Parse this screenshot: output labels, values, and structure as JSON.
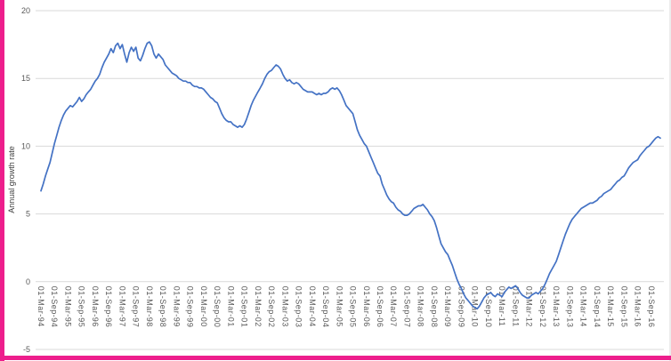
{
  "theme": {
    "accent": "#ED1E8C",
    "line_color": "#4472C4",
    "grid_color": "#D9D9D9",
    "axis_text_color": "#595959",
    "axis_title_color": "#404040",
    "background": "#FFFFFF"
  },
  "chart_data": {
    "type": "line",
    "title": "",
    "xlabel": "",
    "ylabel": "Annual growth rate",
    "ylim": [
      -5,
      20
    ],
    "yticks": [
      20,
      15,
      10,
      5,
      0,
      -5
    ],
    "grid": true,
    "legend": false,
    "x_tick_labels": [
      "01-Mar-94",
      "01-Sep-94",
      "01-Mar-95",
      "01-Sep-95",
      "01-Mar-96",
      "01-Sep-96",
      "01-Mar-97",
      "01-Sep-97",
      "01-Mar-98",
      "01-Sep-98",
      "01-Mar-99",
      "01-Sep-99",
      "01-Mar-00",
      "01-Sep-00",
      "01-Mar-01",
      "01-Sep-01",
      "01-Mar-02",
      "01-Sep-02",
      "01-Mar-03",
      "01-Sep-03",
      "01-Mar-04",
      "01-Sep-04",
      "01-Mar-05",
      "01-Sep-05",
      "01-Mar-06",
      "01-Sep-06",
      "01-Mar-07",
      "01-Sep-07",
      "01-Mar-08",
      "01-Sep-08",
      "01-Mar-09",
      "01-Sep-09",
      "01-Mar-10",
      "01-Sep-10",
      "01-Mar-11",
      "01-Sep-11",
      "01-Mar-12",
      "01-Sep-12",
      "01-Mar-13",
      "01-Sep-13",
      "01-Mar-14",
      "01-Sep-14",
      "01-Mar-15",
      "01-Sep-15",
      "01-Mar-16",
      "01-Sep-16"
    ],
    "months_per_tick": 6,
    "series": [
      {
        "name": "Annual growth rate",
        "start": "1994-03",
        "frequency": "monthly",
        "values": [
          6.7,
          7.2,
          7.8,
          8.3,
          8.8,
          9.5,
          10.2,
          10.8,
          11.4,
          11.9,
          12.3,
          12.6,
          12.8,
          13.0,
          12.9,
          13.1,
          13.3,
          13.6,
          13.3,
          13.5,
          13.8,
          14.0,
          14.2,
          14.5,
          14.8,
          15.0,
          15.3,
          15.8,
          16.2,
          16.5,
          16.8,
          17.2,
          16.9,
          17.4,
          17.6,
          17.2,
          17.5,
          16.8,
          16.2,
          16.9,
          17.3,
          17.0,
          17.3,
          16.5,
          16.3,
          16.7,
          17.2,
          17.6,
          17.7,
          17.4,
          16.8,
          16.5,
          16.8,
          16.6,
          16.4,
          16.0,
          15.8,
          15.6,
          15.4,
          15.3,
          15.2,
          15.0,
          14.9,
          14.8,
          14.8,
          14.7,
          14.7,
          14.5,
          14.4,
          14.4,
          14.3,
          14.3,
          14.2,
          14.0,
          13.8,
          13.6,
          13.5,
          13.3,
          13.2,
          12.8,
          12.4,
          12.1,
          11.9,
          11.8,
          11.8,
          11.6,
          11.5,
          11.4,
          11.5,
          11.4,
          11.6,
          12.0,
          12.5,
          13.0,
          13.4,
          13.7,
          14.0,
          14.3,
          14.6,
          15.0,
          15.3,
          15.5,
          15.6,
          15.8,
          16.0,
          15.9,
          15.7,
          15.3,
          15.0,
          14.8,
          14.9,
          14.7,
          14.6,
          14.7,
          14.6,
          14.4,
          14.2,
          14.1,
          14.0,
          14.0,
          14.0,
          13.9,
          13.8,
          13.9,
          13.8,
          13.9,
          13.9,
          14.0,
          14.2,
          14.3,
          14.2,
          14.3,
          14.1,
          13.8,
          13.4,
          13.0,
          12.8,
          12.6,
          12.4,
          11.8,
          11.2,
          10.8,
          10.5,
          10.2,
          10.0,
          9.6,
          9.2,
          8.8,
          8.4,
          8.0,
          7.8,
          7.2,
          6.8,
          6.4,
          6.1,
          5.9,
          5.8,
          5.5,
          5.3,
          5.2,
          5.0,
          4.9,
          4.9,
          5.0,
          5.2,
          5.4,
          5.5,
          5.6,
          5.6,
          5.7,
          5.5,
          5.3,
          5.0,
          4.8,
          4.5,
          4.0,
          3.4,
          2.8,
          2.5,
          2.2,
          2.0,
          1.6,
          1.2,
          0.7,
          0.2,
          -0.2,
          -0.5,
          -0.9,
          -1.2,
          -1.4,
          -1.6,
          -1.8,
          -1.9,
          -2.0,
          -1.8,
          -1.5,
          -1.2,
          -1.0,
          -0.9,
          -0.8,
          -1.0,
          -1.1,
          -0.9,
          -1.0,
          -1.1,
          -0.8,
          -0.6,
          -0.4,
          -0.5,
          -0.4,
          -0.3,
          -0.5,
          -0.8,
          -1.0,
          -1.1,
          -1.2,
          -1.2,
          -1.0,
          -0.9,
          -0.8,
          -0.9,
          -0.7,
          -0.5,
          -0.2,
          0.2,
          0.6,
          0.9,
          1.2,
          1.5,
          2.0,
          2.5,
          3.0,
          3.5,
          3.9,
          4.3,
          4.6,
          4.8,
          5.0,
          5.2,
          5.4,
          5.5,
          5.6,
          5.7,
          5.8,
          5.8,
          5.9,
          6.0,
          6.2,
          6.3,
          6.5,
          6.6,
          6.7,
          6.8,
          7.0,
          7.2,
          7.4,
          7.5,
          7.7,
          7.8,
          8.1,
          8.4,
          8.6,
          8.8,
          8.9,
          9.0,
          9.3,
          9.5,
          9.7,
          9.9,
          10.0,
          10.2,
          10.4,
          10.6,
          10.7,
          10.6
        ]
      }
    ]
  }
}
